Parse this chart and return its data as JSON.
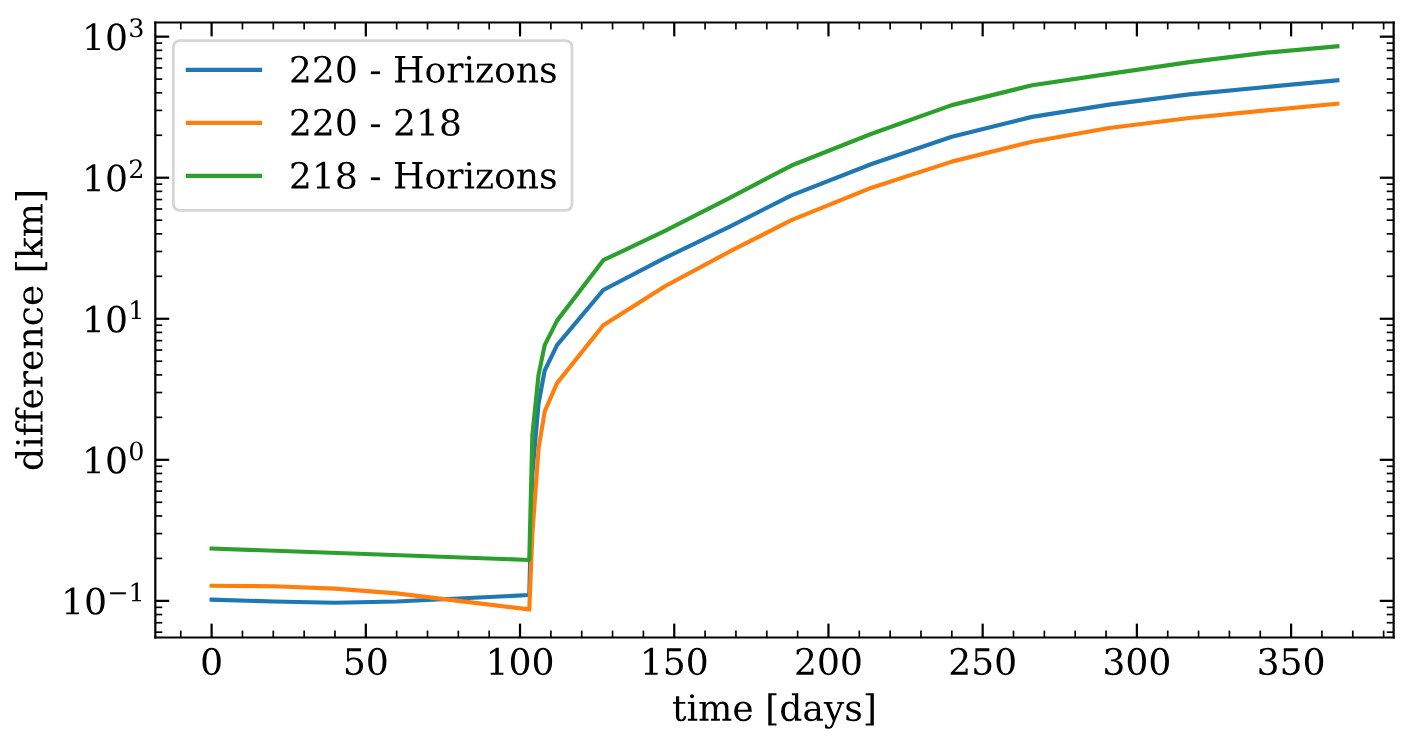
{
  "chart_data": {
    "type": "line",
    "xlabel": "time [days]",
    "ylabel": "difference [km]",
    "log": "y",
    "grid": false,
    "legend": "top left",
    "xlim": [
      -18.25,
      383.25
    ],
    "xticks": [
      0,
      50,
      100,
      150,
      200,
      250,
      300,
      350
    ],
    "ylim": [
      0.055,
      1260
    ],
    "yticks": [
      {
        "value": 0.1,
        "label": "10$^{−1}$"
      },
      {
        "value": 1,
        "label": "10$^{0}$"
      },
      {
        "value": 10,
        "label": "10$^{1}$"
      },
      {
        "value": 100,
        "label": "10$^{2}$"
      },
      {
        "value": 1000,
        "label": "10$^{3}$"
      }
    ],
    "series": [
      {
        "name": "220 - Horizons",
        "color": "#1f77b4",
        "x": [
          0,
          20,
          40,
          60,
          80,
          103,
          104,
          106,
          108,
          112,
          127,
          147,
          168,
          188,
          214,
          240,
          266,
          291,
          317,
          342,
          365
        ],
        "values": [
          0.102,
          0.099,
          0.097,
          0.099,
          0.104,
          0.11,
          0.8,
          2.5,
          4.3,
          6.5,
          16,
          27,
          45,
          75,
          125,
          195,
          270,
          330,
          390,
          440,
          490
        ]
      },
      {
        "name": "220 - 218",
        "color": "#ff7f0e",
        "x": [
          0,
          20,
          40,
          60,
          80,
          103,
          104,
          106,
          108,
          112,
          127,
          147,
          168,
          188,
          214,
          240,
          266,
          291,
          317,
          342,
          365
        ],
        "values": [
          0.128,
          0.127,
          0.122,
          0.113,
          0.1,
          0.087,
          0.3,
          1.2,
          2.2,
          3.5,
          9,
          17,
          30,
          50,
          85,
          130,
          180,
          225,
          265,
          300,
          335
        ]
      },
      {
        "name": "218 - Horizons",
        "color": "#2ca02c",
        "x": [
          0,
          50,
          103,
          104,
          106,
          108,
          112,
          127,
          147,
          168,
          188,
          214,
          240,
          266,
          291,
          317,
          342,
          365
        ],
        "values": [
          0.235,
          0.215,
          0.195,
          1.5,
          4,
          6.5,
          9.7,
          26,
          42,
          72,
          122,
          205,
          327,
          452,
          545,
          660,
          770,
          855
        ]
      }
    ]
  }
}
